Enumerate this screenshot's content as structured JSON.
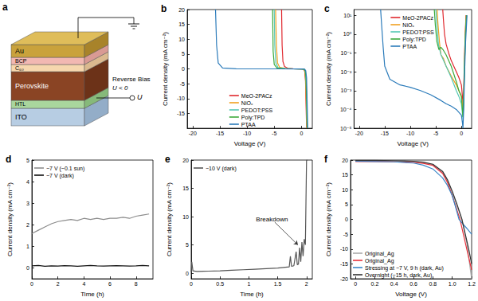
{
  "diagram": {
    "title": "a",
    "layers": [
      "Au",
      "BCP",
      "C₆₀",
      "Perovskite",
      "HTL",
      "ITO"
    ],
    "bias_label": "Reverse Bias",
    "bias_condition": "U < 0",
    "terminal": "U"
  },
  "chart_data": [
    {
      "title": "b",
      "type": "line",
      "xlabel": "Voltage (V)",
      "ylabel": "Current density (mA cm⁻²)",
      "xlim": [
        -21,
        2
      ],
      "xticks": [
        -20,
        -15,
        -10,
        -5,
        0
      ],
      "ylim": [
        -20,
        20
      ],
      "yticks": [
        -15,
        -10,
        -5,
        0,
        5,
        10,
        15,
        20
      ],
      "grid": false,
      "legend": "lower center",
      "series": [
        {
          "name": "MeO-2PACz",
          "color": "#e0282e",
          "x": [
            -3.65,
            -3.55,
            -3.4,
            -3.1,
            -2.5,
            -1.5,
            0,
            0.4,
            0.6,
            0.75,
            0.85,
            0.95
          ],
          "values": [
            20,
            8,
            2.5,
            0.8,
            0.2,
            0.05,
            0,
            -0.1,
            -0.8,
            -4,
            -12,
            -20
          ]
        },
        {
          "name": "NiOₓ",
          "color": "#f0a020",
          "x": [
            -4.75,
            -4.6,
            -4.4,
            -4,
            -3,
            -1.5,
            0,
            0.4,
            0.6,
            0.75,
            0.88,
            0.98
          ],
          "values": [
            20,
            8,
            2,
            0.5,
            0.1,
            0.02,
            0,
            -0.1,
            -0.6,
            -3,
            -11,
            -20
          ]
        },
        {
          "name": "PEDOT:PSS",
          "color": "#55c8b4",
          "x": [
            -5.0,
            -4.9,
            -4.7,
            -4.3,
            -3,
            -1.5,
            0,
            0.5,
            0.7,
            0.85,
            0.95,
            1.05
          ],
          "values": [
            20,
            8,
            2,
            0.4,
            0.1,
            0.02,
            0,
            -0.1,
            -0.8,
            -4,
            -12,
            -20
          ]
        },
        {
          "name": "Poly:TPD",
          "color": "#3caa3c",
          "x": [
            -5.3,
            -5.2,
            -5.0,
            -4.5,
            -4,
            -3,
            -1.5,
            0,
            0.5,
            0.7,
            0.85,
            0.97,
            1.07
          ],
          "values": [
            20,
            6,
            1.5,
            0.3,
            0.25,
            0.1,
            0.02,
            0,
            -0.1,
            -0.6,
            -3,
            -11,
            -20
          ]
        },
        {
          "name": "PTAA",
          "color": "#2b7bba",
          "x": [
            -15.8,
            -15.6,
            -15.3,
            -14.5,
            -12,
            -8,
            -4,
            0,
            0.6,
            0.8,
            0.95,
            1.05,
            1.15
          ],
          "values": [
            20,
            8,
            2,
            0.3,
            0.05,
            0.02,
            0.01,
            0,
            -0.1,
            -0.6,
            -3,
            -11,
            -20
          ]
        }
      ]
    },
    {
      "title": "c",
      "type": "line",
      "xlabel": "Voltage (V)",
      "ylabel": "Current density (mA cm⁻²)",
      "log": "y",
      "xlim": [
        -21,
        2
      ],
      "xticks": [
        -20,
        -15,
        -10,
        -5,
        0
      ],
      "ylim": [
        1e-05,
        20
      ],
      "yticks": [
        {
          "value": 1e-05,
          "label": "10⁻⁵"
        },
        {
          "value": 0.0001,
          "label": "10⁻⁴"
        },
        {
          "value": 0.001,
          "label": "10⁻³"
        },
        {
          "value": 0.01,
          "label": "10⁻²"
        },
        {
          "value": 0.1,
          "label": "10⁻¹"
        },
        {
          "value": 1,
          "label": "10⁰"
        },
        {
          "value": 10,
          "label": "10¹"
        }
      ],
      "grid": false,
      "legend": "upper center",
      "series": [
        {
          "name": "MeO-2PACz",
          "color": "#e0282e",
          "x": [
            -3.65,
            -3.5,
            -3.3,
            -3,
            -2.5,
            -2,
            -1.5,
            -1,
            -0.5,
            0,
            0.2,
            0.3,
            0.45,
            0.6,
            0.75,
            0.9
          ],
          "values": [
            20,
            5,
            1,
            0.3,
            0.1,
            0.04,
            0.02,
            0.01,
            0.005,
            0.002,
            0.0005,
            0.0002,
            0.001,
            0.05,
            1,
            10
          ]
        },
        {
          "name": "NiOₓ",
          "color": "#f0a020",
          "x": [
            -4.75,
            -4.6,
            -4.3,
            -4,
            -3.5,
            -3,
            -2,
            -1,
            -0.5,
            0,
            0.2,
            0.3,
            0.45,
            0.6,
            0.75,
            0.95
          ],
          "values": [
            20,
            4,
            0.4,
            0.08,
            0.05,
            0.02,
            0.006,
            0.002,
            0.001,
            0.0005,
            0.0002,
            8e-05,
            0.0005,
            0.03,
            1,
            10
          ]
        },
        {
          "name": "PEDOT:PSS",
          "color": "#55c8b4",
          "x": [
            -5.0,
            -4.8,
            -4.5,
            -4,
            -3,
            -2,
            -1,
            -0.5,
            0,
            0.2,
            0.3,
            0.45,
            0.6,
            0.8,
            1.0
          ],
          "values": [
            20,
            3,
            0.3,
            0.08,
            0.02,
            0.005,
            0.001,
            0.0005,
            0.0002,
            6e-05,
            3e-05,
            0.0003,
            0.02,
            1,
            10
          ]
        },
        {
          "name": "Poly:TPD",
          "color": "#3caa3c",
          "x": [
            -5.3,
            -5.1,
            -4.8,
            -4.4,
            -4,
            -3.6,
            -3,
            -2,
            -1,
            -0.5,
            0,
            0.2,
            0.3,
            0.45,
            0.6,
            0.8,
            1.0
          ],
          "values": [
            20,
            3,
            0.4,
            0.15,
            0.2,
            0.15,
            0.08,
            0.02,
            0.003,
            0.001,
            0.0005,
            0.0001,
            4e-05,
            0.0004,
            0.02,
            1,
            10
          ]
        },
        {
          "name": "PTAA",
          "color": "#2b7bba",
          "x": [
            -15.8,
            -15.6,
            -15.3,
            -15,
            -14,
            -12,
            -10,
            -8,
            -6,
            -4,
            -3,
            -2,
            -1,
            0,
            0.2,
            0.3,
            0.45,
            0.6,
            0.8,
            1.1
          ],
          "values": [
            20,
            3,
            0.2,
            0.02,
            0.004,
            0.002,
            0.0015,
            0.001,
            0.0006,
            0.0003,
            0.0002,
            0.00015,
            0.0001,
            5e-05,
            2e-05,
            1e-05,
            0.0001,
            0.005,
            0.3,
            10
          ]
        }
      ]
    },
    {
      "title": "d",
      "type": "line",
      "xlabel": "Time (h)",
      "ylabel": "Current density (mA cm⁻²)",
      "xlim": [
        0,
        9.3
      ],
      "xticks": [
        0,
        2,
        4,
        6,
        8
      ],
      "ylim": [
        -0.5,
        5
      ],
      "yticks": [
        0,
        1,
        2,
        3,
        4,
        5
      ],
      "grid": false,
      "legend": "upper left",
      "series": [
        {
          "name": "−7 V (~0.1 sun)",
          "color": "#8c8c8c",
          "x": [
            0,
            0.5,
            1,
            1.5,
            2,
            2.5,
            3,
            3.5,
            4,
            4.5,
            5,
            5.5,
            6,
            6.5,
            7,
            7.5,
            8,
            8.5,
            9
          ],
          "values": [
            1.6,
            1.75,
            1.9,
            2.05,
            2.15,
            2.2,
            2.25,
            2.2,
            2.3,
            2.25,
            2.3,
            2.25,
            2.3,
            2.3,
            2.35,
            2.3,
            2.4,
            2.45,
            2.5
          ]
        },
        {
          "name": "−7 V (dark)",
          "color": "#111111",
          "x": [
            0,
            0.5,
            1,
            1.5,
            2,
            2.5,
            3,
            3.5,
            4,
            4.5,
            5,
            5.5,
            6,
            6.5,
            7,
            7.5,
            8,
            8.5,
            9
          ],
          "values": [
            0.1,
            0.12,
            0.08,
            0.1,
            0.09,
            0.11,
            0.1,
            0.08,
            0.1,
            0.12,
            0.1,
            0.09,
            0.1,
            0.11,
            0.1,
            0.09,
            0.1,
            0.12,
            0.1
          ]
        }
      ]
    },
    {
      "title": "e",
      "type": "line",
      "xlabel": "Time (h)",
      "ylabel": "Current density (mA cm⁻²)",
      "xlim": [
        0,
        2.1
      ],
      "xticks": [
        0,
        0.5,
        1,
        1.5,
        2
      ],
      "ylim": [
        -1,
        20
      ],
      "yticks": [
        0,
        5,
        10,
        15,
        20
      ],
      "grid": false,
      "legend": "upper left",
      "annotations": [
        {
          "text": "Breakdown",
          "x": 1.45,
          "y": 9,
          "target": [
            1.85,
            5
          ]
        }
      ],
      "series": [
        {
          "name": "−10 V (dark)",
          "color": "#555555",
          "x": [
            0,
            0.01,
            0.03,
            0.1,
            0.3,
            0.5,
            0.7,
            0.9,
            1.1,
            1.3,
            1.5,
            1.6,
            1.7,
            1.72,
            1.74,
            1.78,
            1.82,
            1.84,
            1.86,
            1.88,
            1.9,
            1.92,
            1.94,
            1.96,
            1.98,
            2.0,
            2.02
          ],
          "values": [
            0.2,
            2,
            0.4,
            0.3,
            0.35,
            0.4,
            0.5,
            0.6,
            0.7,
            0.8,
            0.9,
            1.0,
            1.1,
            3,
            1.2,
            1.3,
            3.8,
            1.5,
            1.6,
            4.5,
            2,
            5.5,
            3,
            6,
            5,
            20,
            20
          ]
        }
      ]
    },
    {
      "title": "f",
      "type": "line",
      "xlabel": "Voltage (V)",
      "ylabel": "Current density (mA cm⁻²)",
      "xlim": [
        -0.05,
        1.2
      ],
      "xticks": [
        0,
        0.2,
        0.4,
        0.6,
        0.8,
        {
          "value": 1,
          "label": "1.0"
        },
        1.2
      ],
      "ylim": [
        -20,
        20
      ],
      "yticks": [
        -20,
        -15,
        -10,
        -5,
        0,
        5,
        10,
        15,
        20
      ],
      "grid": false,
      "legend": "lower left",
      "series": [
        {
          "name": "Original_Ag",
          "color": "#aaaaaa",
          "x": [
            0,
            0.2,
            0.4,
            0.6,
            0.7,
            0.8,
            0.9,
            0.95,
            1.0,
            1.05,
            1.1,
            1.15,
            1.2
          ],
          "values": [
            19.8,
            19.8,
            19.7,
            19.5,
            19.2,
            18.5,
            16,
            13,
            9,
            4.5,
            0,
            -8,
            -20
          ]
        },
        {
          "name": "Original_Ag",
          "color": "#e8303a",
          "x": [
            0,
            0.2,
            0.4,
            0.6,
            0.7,
            0.8,
            0.9,
            0.95,
            1.0,
            1.04,
            1.08,
            1.15,
            1.2
          ],
          "values": [
            19.5,
            19.5,
            19.4,
            19.2,
            18.9,
            18.2,
            15.5,
            12.5,
            8,
            4,
            0,
            -10,
            -17
          ]
        },
        {
          "name": "Stressing at −7 V, 9 h (dark, Au)",
          "color": "#3a86c8",
          "x": [
            0,
            0.2,
            0.4,
            0.6,
            0.7,
            0.8,
            0.9,
            0.95,
            1.0,
            1.04,
            1.07,
            1.15,
            1.2
          ],
          "values": [
            19.6,
            19.5,
            19.4,
            19,
            18.3,
            17,
            14,
            11.5,
            8,
            3.5,
            0,
            -3,
            -5
          ]
        },
        {
          "name": "Overnight (~15 h, dark, Au)",
          "color": "#333333",
          "x": [
            0,
            0.2,
            0.4,
            0.6,
            0.7,
            0.8,
            0.9,
            0.95,
            1.0,
            1.05,
            1.1,
            1.17,
            1.2
          ],
          "values": [
            19.9,
            19.9,
            19.8,
            19.6,
            19.3,
            18.6,
            16.2,
            13.4,
            9.5,
            5,
            0,
            -10,
            -15
          ]
        }
      ]
    }
  ]
}
